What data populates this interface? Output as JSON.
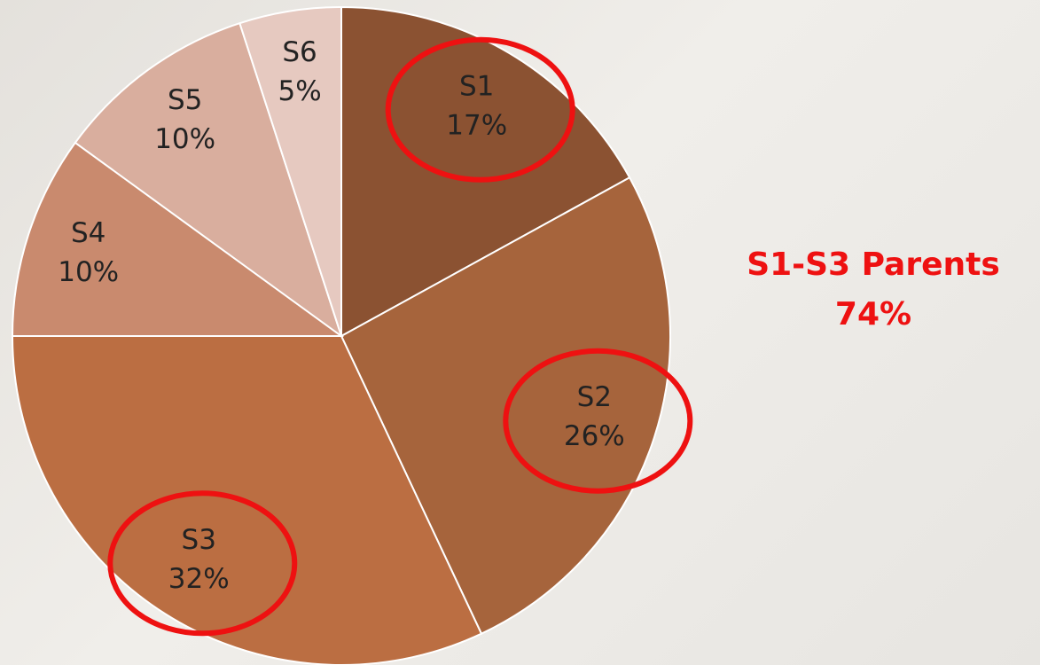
{
  "chart_data": {
    "type": "pie",
    "categories": [
      "S1",
      "S2",
      "S3",
      "S4",
      "S5",
      "S6"
    ],
    "values": [
      17,
      26,
      32,
      10,
      10,
      5
    ],
    "value_labels": [
      "17%",
      "26%",
      "32%",
      "10%",
      "10%",
      "5%"
    ],
    "colors": [
      "#8b5232",
      "#a6643c",
      "#bb6e42",
      "#c98a6e",
      "#d9ae9e",
      "#e6c9c0"
    ],
    "highlight": [
      0,
      1,
      2
    ],
    "annotation": {
      "title": "S1-S3 Parents",
      "value": "74%"
    }
  }
}
